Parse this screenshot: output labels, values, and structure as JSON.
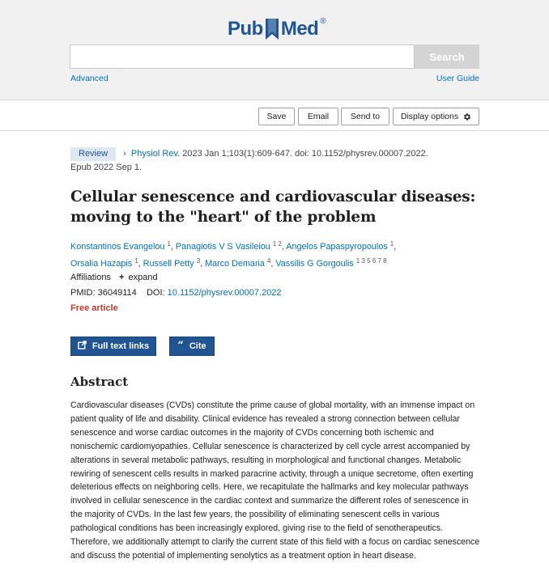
{
  "header": {
    "logo_pub": "Pub",
    "logo_med": "Med",
    "logo_reg": "®",
    "search_button": "Search",
    "search_value": "",
    "advanced_link": "Advanced",
    "user_guide_link": "User Guide",
    "brand_color": "#205493",
    "link_color": "#0071bc"
  },
  "toolbar": {
    "save": "Save",
    "email": "Email",
    "send_to": "Send to",
    "display_options": "Display options"
  },
  "article": {
    "type_badge": "Review",
    "journal": "Physiol Rev.",
    "citation": "2023 Jan 1;103(1):609-647. doi: 10.1152/physrev.00007.2022.",
    "epub": "Epub 2022 Sep 1.",
    "title": "Cellular senescence and cardiovascular diseases: moving to the \"heart\" of the problem",
    "authors": [
      {
        "name": "Konstantinos Evangelou",
        "sup": "1"
      },
      {
        "name": "Panagiotis V S Vasileiou",
        "sup": "1 2"
      },
      {
        "name": "Angelos Papaspyropoulos",
        "sup": "1"
      },
      {
        "name": "Orsalia Hazapis",
        "sup": "1"
      },
      {
        "name": "Russell Petty",
        "sup": "3"
      },
      {
        "name": "Marco Demaria",
        "sup": "4"
      },
      {
        "name": "Vassilis G Gorgoulis",
        "sup": "1 3 5 6 7 8"
      }
    ],
    "affiliations_label": "Affiliations",
    "expand_label": "expand",
    "pmid_label": "PMID:",
    "pmid": "36049114",
    "doi_label": "DOI:",
    "doi": "10.1152/physrev.00007.2022",
    "free_article": "Free article",
    "full_text_links": "Full text links",
    "cite": "Cite",
    "abstract_heading": "Abstract",
    "abstract": "Cardiovascular diseases (CVDs) constitute the prime cause of global mortality, with an immense impact on patient quality of life and disability. Clinical evidence has revealed a strong connection between cellular senescence and worse cardiac outcomes in the majority of CVDs concerning both ischemic and nonischemic cardiomyopathies. Cellular senescence is characterized by cell cycle arrest accompanied by alterations in several metabolic pathways, resulting in morphological and functional changes. Metabolic rewiring of senescent cells results in marked paracrine activity, through a unique secretome, often exerting deleterious effects on neighboring cells. Here, we recapitulate the hallmarks and key molecular pathways involved in cellular senescence in the cardiac context and summarize the different roles of senescence in the majority of CVDs. In the last few years, the possibility of eliminating senescent cells in various pathological conditions has been increasingly explored, giving rise to the field of senotherapeutics. Therefore, we additionally attempt to clarify the current state of this field with a focus on cardiac senescence and discuss the potential of implementing senolytics as a treatment option in heart disease."
  }
}
